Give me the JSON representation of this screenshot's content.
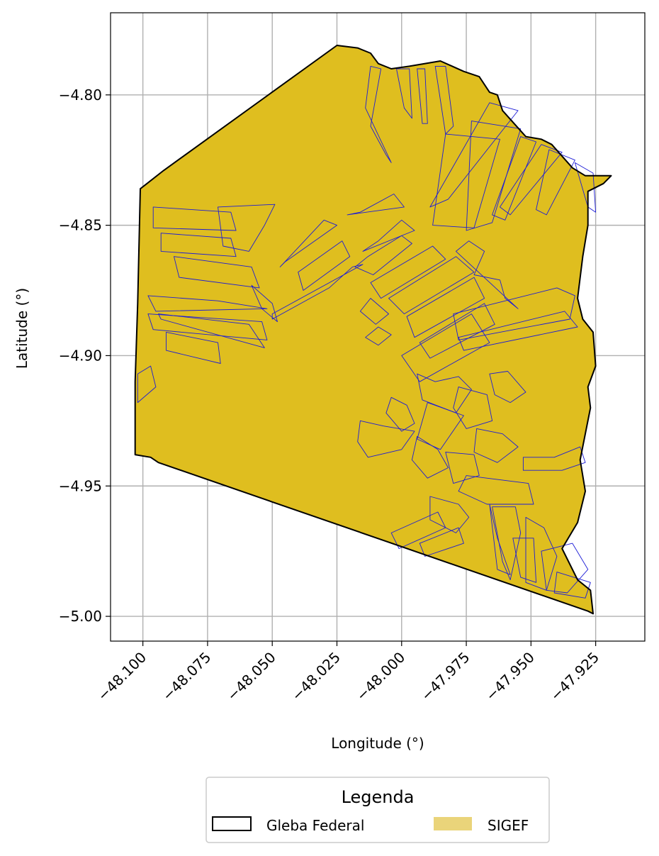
{
  "map": {
    "xlabel": "Longitude (°)",
    "ylabel": "Latitude (°)",
    "xlim": [
      -48.1125,
      -47.906
    ],
    "ylim": [
      -5.0095,
      -4.7685
    ],
    "x_ticks": [
      -48.1,
      -48.075,
      -48.05,
      -48.025,
      -48.0,
      -47.975,
      -47.95,
      -47.925
    ],
    "x_tick_labels": [
      "−48.100",
      "−48.075",
      "−48.050",
      "−48.025",
      "−48.000",
      "−47.975",
      "−47.950",
      "−47.925"
    ],
    "y_ticks": [
      -4.8,
      -4.85,
      -4.9,
      -4.95,
      -5.0
    ],
    "y_tick_labels": [
      "−4.80",
      "−4.85",
      "−4.90",
      "−4.95",
      "−5.00"
    ],
    "grid": true,
    "colors": {
      "gleba_edge": "#000000",
      "sigef_fill": "#dfbe1f",
      "parcel_edge": "#1c1cd6",
      "legend_sigef_patch": "#ead47a"
    }
  },
  "legend": {
    "title": "Legenda",
    "entries": [
      {
        "label": "Gleba Federal"
      },
      {
        "label": "SIGEF"
      }
    ]
  },
  "gleba_boundary": [
    [
      -48.101,
      -4.836
    ],
    [
      -48.092,
      -4.829
    ],
    [
      -48.025,
      -4.781
    ],
    [
      -48.017,
      -4.782
    ],
    [
      -48.012,
      -4.784
    ],
    [
      -48.009,
      -4.788
    ],
    [
      -48.004,
      -4.79
    ],
    [
      -47.997,
      -4.789
    ],
    [
      -47.985,
      -4.787
    ],
    [
      -47.976,
      -4.791
    ],
    [
      -47.97,
      -4.793
    ],
    [
      -47.966,
      -4.799
    ],
    [
      -47.963,
      -4.8
    ],
    [
      -47.961,
      -4.806
    ],
    [
      -47.952,
      -4.816
    ],
    [
      -47.946,
      -4.817
    ],
    [
      -47.942,
      -4.819
    ],
    [
      -47.934,
      -4.828
    ],
    [
      -47.929,
      -4.831
    ],
    [
      -47.919,
      -4.831
    ],
    [
      -47.922,
      -4.834
    ],
    [
      -47.928,
      -4.837
    ],
    [
      -47.928,
      -4.85
    ],
    [
      -47.93,
      -4.862
    ],
    [
      -47.932,
      -4.878
    ],
    [
      -47.93,
      -4.886
    ],
    [
      -47.926,
      -4.891
    ],
    [
      -47.925,
      -4.904
    ],
    [
      -47.928,
      -4.912
    ],
    [
      -47.927,
      -4.92
    ],
    [
      -47.929,
      -4.93
    ],
    [
      -47.931,
      -4.94
    ],
    [
      -47.929,
      -4.952
    ],
    [
      -47.932,
      -4.964
    ],
    [
      -47.938,
      -4.974
    ],
    [
      -47.932,
      -4.986
    ],
    [
      -47.927,
      -4.99
    ],
    [
      -47.926,
      -4.999
    ],
    [
      -47.928,
      -4.998
    ],
    [
      -48.094,
      -4.941
    ],
    [
      -48.097,
      -4.939
    ],
    [
      -48.103,
      -4.938
    ],
    [
      -48.103,
      -4.91
    ],
    [
      -48.102,
      -4.88
    ],
    [
      -48.101,
      -4.836
    ]
  ],
  "sigef_parcels": [
    [
      [
        -48.096,
        -4.843
      ],
      [
        -48.066,
        -4.845
      ],
      [
        -48.064,
        -4.852
      ],
      [
        -48.096,
        -4.851
      ]
    ],
    [
      [
        -48.093,
        -4.853
      ],
      [
        -48.066,
        -4.855
      ],
      [
        -48.064,
        -4.862
      ],
      [
        -48.093,
        -4.86
      ]
    ],
    [
      [
        -48.088,
        -4.862
      ],
      [
        -48.058,
        -4.866
      ],
      [
        -48.055,
        -4.874
      ],
      [
        -48.086,
        -4.87
      ]
    ],
    [
      [
        -48.098,
        -4.877
      ],
      [
        -48.071,
        -4.879
      ],
      [
        -48.052,
        -4.882
      ],
      [
        -48.095,
        -4.883
      ]
    ],
    [
      [
        -48.098,
        -4.884
      ],
      [
        -48.054,
        -4.887
      ],
      [
        -48.052,
        -4.894
      ],
      [
        -48.096,
        -4.89
      ]
    ],
    [
      [
        -48.094,
        -4.884
      ],
      [
        -48.059,
        -4.888
      ],
      [
        -48.053,
        -4.897
      ],
      [
        -48.093,
        -4.886
      ]
    ],
    [
      [
        -48.091,
        -4.891
      ],
      [
        -48.071,
        -4.895
      ],
      [
        -48.07,
        -4.903
      ],
      [
        -48.091,
        -4.898
      ]
    ],
    [
      [
        -48.102,
        -4.907
      ],
      [
        -48.097,
        -4.904
      ],
      [
        -48.095,
        -4.912
      ],
      [
        -48.102,
        -4.918
      ]
    ],
    [
      [
        -48.071,
        -4.843
      ],
      [
        -48.049,
        -4.842
      ],
      [
        -48.053,
        -4.85
      ],
      [
        -48.059,
        -4.86
      ],
      [
        -48.069,
        -4.858
      ]
    ],
    [
      [
        -48.058,
        -4.873
      ],
      [
        -48.05,
        -4.88
      ],
      [
        -48.048,
        -4.887
      ],
      [
        -48.054,
        -4.882
      ]
    ],
    [
      [
        -48.05,
        -4.886
      ],
      [
        -48.028,
        -4.874
      ],
      [
        -48.019,
        -4.866
      ],
      [
        -48.015,
        -4.865
      ],
      [
        -48.05,
        -4.884
      ]
    ],
    [
      [
        -48.047,
        -4.866
      ],
      [
        -48.03,
        -4.848
      ],
      [
        -48.025,
        -4.85
      ],
      [
        -48.045,
        -4.864
      ]
    ],
    [
      [
        -48.04,
        -4.868
      ],
      [
        -48.023,
        -4.856
      ],
      [
        -48.02,
        -4.862
      ],
      [
        -48.038,
        -4.875
      ]
    ],
    [
      [
        -48.018,
        -4.866
      ],
      [
        -48.013,
        -4.862
      ],
      [
        -48.0,
        -4.854
      ],
      [
        -47.996,
        -4.857
      ],
      [
        -48.011,
        -4.869
      ]
    ],
    [
      [
        -48.012,
        -4.872
      ],
      [
        -47.988,
        -4.858
      ],
      [
        -47.983,
        -4.863
      ],
      [
        -48.008,
        -4.878
      ]
    ],
    [
      [
        -48.005,
        -4.878
      ],
      [
        -47.979,
        -4.862
      ],
      [
        -47.972,
        -4.868
      ],
      [
        -47.999,
        -4.884
      ]
    ],
    [
      [
        -47.998,
        -4.885
      ],
      [
        -47.972,
        -4.87
      ],
      [
        -47.968,
        -4.878
      ],
      [
        -47.995,
        -4.893
      ]
    ],
    [
      [
        -47.993,
        -4.895
      ],
      [
        -47.968,
        -4.88
      ],
      [
        -47.964,
        -4.888
      ],
      [
        -47.989,
        -4.901
      ]
    ],
    [
      [
        -48.0,
        -4.9
      ],
      [
        -47.973,
        -4.884
      ],
      [
        -47.966,
        -4.895
      ],
      [
        -47.993,
        -4.91
      ]
    ],
    [
      [
        -48.014,
        -4.893
      ],
      [
        -48.009,
        -4.889
      ],
      [
        -48.004,
        -4.892
      ],
      [
        -48.009,
        -4.896
      ]
    ],
    [
      [
        -48.016,
        -4.883
      ],
      [
        -48.012,
        -4.878
      ],
      [
        -48.005,
        -4.884
      ],
      [
        -48.01,
        -4.888
      ]
    ],
    [
      [
        -47.979,
        -4.86
      ],
      [
        -47.974,
        -4.856
      ],
      [
        -47.968,
        -4.86
      ],
      [
        -47.972,
        -4.869
      ],
      [
        -47.962,
        -4.871
      ],
      [
        -47.96,
        -4.878
      ],
      [
        -47.955,
        -4.882
      ]
    ],
    [
      [
        -47.98,
        -4.884
      ],
      [
        -47.94,
        -4.874
      ],
      [
        -47.933,
        -4.877
      ],
      [
        -47.935,
        -4.886
      ],
      [
        -47.978,
        -4.894
      ]
    ],
    [
      [
        -47.978,
        -4.893
      ],
      [
        -47.937,
        -4.883
      ],
      [
        -47.932,
        -4.889
      ],
      [
        -47.976,
        -4.898
      ]
    ],
    [
      [
        -47.973,
        -4.81
      ],
      [
        -47.954,
        -4.813
      ],
      [
        -47.965,
        -4.849
      ],
      [
        -47.975,
        -4.852
      ]
    ],
    [
      [
        -47.983,
        -4.815
      ],
      [
        -47.962,
        -4.817
      ],
      [
        -47.972,
        -4.851
      ],
      [
        -47.988,
        -4.85
      ]
    ],
    [
      [
        -47.954,
        -4.816
      ],
      [
        -47.948,
        -4.818
      ],
      [
        -47.96,
        -4.848
      ],
      [
        -47.965,
        -4.846
      ]
    ],
    [
      [
        -47.943,
        -4.821
      ],
      [
        -47.933,
        -4.825
      ],
      [
        -47.944,
        -4.846
      ],
      [
        -47.948,
        -4.844
      ]
    ],
    [
      [
        -47.966,
        -4.803
      ],
      [
        -47.955,
        -4.806
      ],
      [
        -47.982,
        -4.84
      ],
      [
        -47.989,
        -4.843
      ]
    ],
    [
      [
        -47.946,
        -4.819
      ],
      [
        -47.938,
        -4.822
      ],
      [
        -47.958,
        -4.846
      ],
      [
        -47.962,
        -4.843
      ]
    ],
    [
      [
        -47.933,
        -4.826
      ],
      [
        -47.926,
        -4.83
      ],
      [
        -47.925,
        -4.845
      ],
      [
        -47.928,
        -4.843
      ]
    ],
    [
      [
        -48.012,
        -4.789
      ],
      [
        -48.008,
        -4.79
      ],
      [
        -48.012,
        -4.812
      ],
      [
        -48.006,
        -4.823
      ],
      [
        -48.004,
        -4.826
      ],
      [
        -48.014,
        -4.805
      ]
    ],
    [
      [
        -48.002,
        -4.79
      ],
      [
        -47.999,
        -4.805
      ],
      [
        -47.996,
        -4.809
      ],
      [
        -47.997,
        -4.79
      ]
    ],
    [
      [
        -47.994,
        -4.79
      ],
      [
        -47.992,
        -4.811
      ],
      [
        -47.99,
        -4.811
      ],
      [
        -47.991,
        -4.79
      ]
    ],
    [
      [
        -47.987,
        -4.789
      ],
      [
        -47.983,
        -4.815
      ],
      [
        -47.98,
        -4.812
      ],
      [
        -47.983,
        -4.789
      ]
    ],
    [
      [
        -48.015,
        -4.86
      ],
      [
        -48.009,
        -4.856
      ],
      [
        -48.0,
        -4.848
      ],
      [
        -47.995,
        -4.852
      ]
    ],
    [
      [
        -48.021,
        -4.846
      ],
      [
        -48.016,
        -4.845
      ],
      [
        -48.003,
        -4.838
      ],
      [
        -47.999,
        -4.843
      ]
    ],
    [
      [
        -47.994,
        -4.907
      ],
      [
        -47.987,
        -4.91
      ],
      [
        -47.978,
        -4.908
      ],
      [
        -47.973,
        -4.913
      ],
      [
        -47.979,
        -4.922
      ],
      [
        -47.992,
        -4.917
      ]
    ],
    [
      [
        -47.99,
        -4.918
      ],
      [
        -47.976,
        -4.923
      ],
      [
        -47.985,
        -4.936
      ],
      [
        -47.994,
        -4.932
      ]
    ],
    [
      [
        -47.978,
        -4.912
      ],
      [
        -47.967,
        -4.915
      ],
      [
        -47.965,
        -4.925
      ],
      [
        -47.975,
        -4.928
      ],
      [
        -47.98,
        -4.92
      ]
    ],
    [
      [
        -47.966,
        -4.907
      ],
      [
        -47.959,
        -4.906
      ],
      [
        -47.952,
        -4.914
      ],
      [
        -47.958,
        -4.918
      ],
      [
        -47.964,
        -4.915
      ]
    ],
    [
      [
        -47.971,
        -4.928
      ],
      [
        -47.961,
        -4.93
      ],
      [
        -47.955,
        -4.935
      ],
      [
        -47.963,
        -4.941
      ],
      [
        -47.972,
        -4.937
      ]
    ],
    [
      [
        -47.994,
        -4.931
      ],
      [
        -47.986,
        -4.936
      ],
      [
        -47.982,
        -4.943
      ],
      [
        -47.99,
        -4.947
      ],
      [
        -47.996,
        -4.94
      ]
    ],
    [
      [
        -47.983,
        -4.937
      ],
      [
        -47.972,
        -4.938
      ],
      [
        -47.97,
        -4.946
      ],
      [
        -47.98,
        -4.949
      ]
    ],
    [
      [
        -48.004,
        -4.916
      ],
      [
        -47.998,
        -4.919
      ],
      [
        -47.995,
        -4.926
      ],
      [
        -48.0,
        -4.929
      ],
      [
        -48.006,
        -4.922
      ]
    ],
    [
      [
        -48.016,
        -4.925
      ],
      [
        -48.007,
        -4.927
      ],
      [
        -47.995,
        -4.929
      ],
      [
        -48.0,
        -4.936
      ],
      [
        -48.013,
        -4.939
      ],
      [
        -48.017,
        -4.933
      ]
    ],
    [
      [
        -47.953,
        -4.939
      ],
      [
        -47.941,
        -4.939
      ],
      [
        -47.931,
        -4.935
      ],
      [
        -47.929,
        -4.941
      ],
      [
        -47.938,
        -4.944
      ],
      [
        -47.953,
        -4.944
      ]
    ],
    [
      [
        -47.975,
        -4.946
      ],
      [
        -47.951,
        -4.949
      ],
      [
        -47.949,
        -4.957
      ],
      [
        -47.967,
        -4.957
      ],
      [
        -47.978,
        -4.952
      ]
    ],
    [
      [
        -47.989,
        -4.954
      ],
      [
        -47.978,
        -4.957
      ],
      [
        -47.974,
        -4.962
      ],
      [
        -47.979,
        -4.968
      ],
      [
        -47.989,
        -4.963
      ]
    ],
    [
      [
        -48.004,
        -4.968
      ],
      [
        -47.986,
        -4.96
      ],
      [
        -47.983,
        -4.966
      ],
      [
        -48.001,
        -4.974
      ]
    ],
    [
      [
        -47.993,
        -4.972
      ],
      [
        -47.978,
        -4.966
      ],
      [
        -47.976,
        -4.972
      ],
      [
        -47.991,
        -4.977
      ]
    ],
    [
      [
        -47.965,
        -4.958
      ],
      [
        -47.956,
        -4.958
      ],
      [
        -47.954,
        -4.968
      ],
      [
        -47.958,
        -4.986
      ],
      [
        -47.961,
        -4.979
      ]
    ],
    [
      [
        -47.952,
        -4.962
      ],
      [
        -47.945,
        -4.966
      ],
      [
        -47.94,
        -4.977
      ],
      [
        -47.944,
        -4.99
      ],
      [
        -47.952,
        -4.987
      ]
    ],
    [
      [
        -47.946,
        -4.975
      ],
      [
        -47.934,
        -4.972
      ],
      [
        -47.928,
        -4.982
      ],
      [
        -47.936,
        -4.991
      ],
      [
        -47.944,
        -4.99
      ]
    ],
    [
      [
        -47.94,
        -4.983
      ],
      [
        -47.927,
        -4.987
      ],
      [
        -47.929,
        -4.993
      ],
      [
        -47.941,
        -4.991
      ]
    ],
    [
      [
        -47.966,
        -4.957
      ],
      [
        -47.963,
        -4.97
      ],
      [
        -47.958,
        -4.984
      ],
      [
        -47.963,
        -4.982
      ]
    ],
    [
      [
        -47.957,
        -4.97
      ],
      [
        -47.949,
        -4.97
      ],
      [
        -47.948,
        -4.987
      ],
      [
        -47.954,
        -4.985
      ]
    ]
  ]
}
